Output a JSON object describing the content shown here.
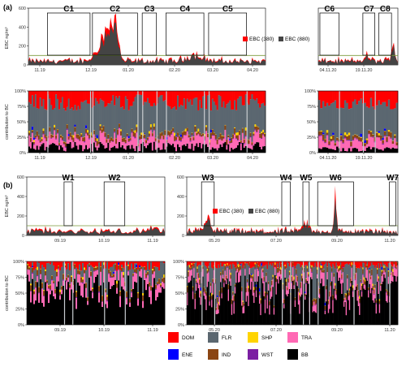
{
  "panels": [
    {
      "id": "a",
      "label": "(a)"
    },
    {
      "id": "b",
      "label": "(b)"
    }
  ],
  "campaign_labels": [
    "C1",
    "C2",
    "C3",
    "C4",
    "C5",
    "C6",
    "C7",
    "C8",
    "W1",
    "W2",
    "W3",
    "W4",
    "W5",
    "W6",
    "W7"
  ],
  "ebc_legend": [
    "EBC (380)",
    "EBC (880)"
  ],
  "ebc_ylabel": "EBC ng/m³",
  "contrib_ylabel": "contribution to BC",
  "source_legend": [
    {
      "name": "DOM",
      "color": "#ff0000"
    },
    {
      "name": "FLR",
      "color": "#5b6770"
    },
    {
      "name": "SHP",
      "color": "#ffd400"
    },
    {
      "name": "TRA",
      "color": "#ff69b4"
    },
    {
      "name": "ENE",
      "color": "#0000ff"
    },
    {
      "name": "IND",
      "color": "#8b4513"
    },
    {
      "name": "WST",
      "color": "#7b1fa2"
    },
    {
      "name": "BB",
      "color": "#000000"
    }
  ],
  "chart_data": [
    {
      "type": "area",
      "panel": "a",
      "title": "",
      "ylabel": "EBC ng/m³",
      "ylim": [
        0,
        600
      ],
      "yticks": [
        "0",
        "200",
        "400",
        "600"
      ],
      "xticks": [
        "11.19",
        "12.19",
        "01.20",
        "02.20",
        "03.20",
        "04.20"
      ],
      "series": [
        {
          "name": "EBC (380)",
          "color": "#ff0000"
        },
        {
          "name": "EBC (880)",
          "color": "#444444"
        }
      ],
      "threshold": 100,
      "highlights": [
        {
          "label": "C1",
          "from": "11.19",
          "to": "12.19"
        },
        {
          "label": "C2",
          "from": "12.19",
          "to": "01.20"
        },
        {
          "label": "C3",
          "from": "01.20",
          "to": "01.20"
        },
        {
          "label": "C4",
          "from": "02.20",
          "to": "03.20"
        },
        {
          "label": "C5",
          "from": "03.20",
          "to": "04.20"
        }
      ]
    },
    {
      "type": "area",
      "panel": "a",
      "title": "",
      "ylabel": "",
      "ylim": [
        0,
        600
      ],
      "xticks": [
        "04.11.20",
        "19.11.20"
      ],
      "series": [
        {
          "name": "EBC (380)",
          "color": "#ff0000"
        },
        {
          "name": "EBC (880)",
          "color": "#444444"
        }
      ],
      "threshold": 100,
      "highlights": [
        {
          "label": "C6"
        },
        {
          "label": "C7"
        },
        {
          "label": "C8"
        }
      ]
    },
    {
      "type": "bar",
      "stacked": true,
      "panel": "a",
      "ylabel": "contribution to BC",
      "ylim": [
        0,
        1
      ],
      "yticks": [
        "0%",
        "25%",
        "50%",
        "75%",
        "100%"
      ],
      "xticks": [
        "11.19",
        "12.19",
        "01.20",
        "02.20",
        "03.20",
        "04.20"
      ],
      "series": [
        "BB",
        "TRA",
        "WST",
        "IND",
        "SHP",
        "ENE",
        "FLR",
        "DOM"
      ]
    },
    {
      "type": "bar",
      "stacked": true,
      "panel": "a",
      "ylabel": "",
      "ylim": [
        0,
        1
      ],
      "yticks": [
        "0%",
        "25%",
        "50%",
        "75%",
        "100%"
      ],
      "xticks": [
        "04.11.20",
        "19.11.20"
      ],
      "series": [
        "BB",
        "TRA",
        "WST",
        "IND",
        "SHP",
        "ENE",
        "FLR",
        "DOM"
      ]
    },
    {
      "type": "area",
      "panel": "b",
      "ylabel": "EBC ng/m³",
      "ylim": [
        0,
        600
      ],
      "yticks": [
        "0",
        "200",
        "400",
        "600"
      ],
      "xticks": [
        "09.19",
        "10.19",
        "11.19"
      ],
      "series": [
        {
          "name": "EBC (380)",
          "color": "#ff0000"
        },
        {
          "name": "EBC (880)",
          "color": "#444444"
        }
      ],
      "threshold": 100,
      "highlights": [
        {
          "label": "W1"
        },
        {
          "label": "W2"
        }
      ]
    },
    {
      "type": "area",
      "panel": "b",
      "ylabel": "",
      "ylim": [
        0,
        600
      ],
      "yticks": [
        "0",
        "200",
        "400",
        "600"
      ],
      "xticks": [
        "05.20",
        "07.20",
        "09.20",
        "11.20"
      ],
      "series": [
        {
          "name": "EBC (380)",
          "color": "#ff0000"
        },
        {
          "name": "EBC (880)",
          "color": "#444444"
        }
      ],
      "threshold": 100,
      "highlights": [
        {
          "label": "W3"
        },
        {
          "label": "W4"
        },
        {
          "label": "W5"
        },
        {
          "label": "W6"
        },
        {
          "label": "W7"
        }
      ]
    },
    {
      "type": "bar",
      "stacked": true,
      "panel": "b",
      "ylabel": "contribution to BC",
      "ylim": [
        0,
        1
      ],
      "yticks": [
        "0%",
        "25%",
        "50%",
        "75%",
        "100%"
      ],
      "xticks": [
        "09.19",
        "10.19",
        "11.19"
      ],
      "series": [
        "BB",
        "TRA",
        "WST",
        "IND",
        "SHP",
        "ENE",
        "FLR",
        "DOM"
      ]
    },
    {
      "type": "bar",
      "stacked": true,
      "panel": "b",
      "ylabel": "",
      "ylim": [
        0,
        1
      ],
      "yticks": [
        "0%",
        "25%",
        "50%",
        "75%",
        "100%"
      ],
      "xticks": [
        "05.20",
        "07.20",
        "09.20",
        "11.20"
      ],
      "series": [
        "BB",
        "TRA",
        "WST",
        "IND",
        "SHP",
        "ENE",
        "FLR",
        "DOM"
      ]
    }
  ]
}
